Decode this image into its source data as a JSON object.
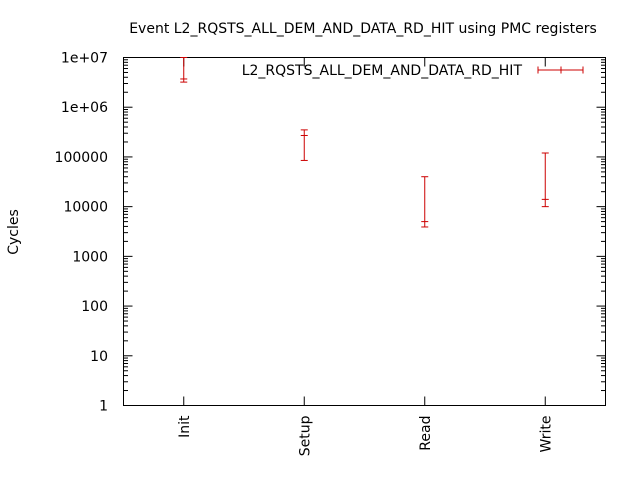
{
  "chart_data": {
    "type": "errorbar",
    "title": "Event L2_RQSTS_ALL_DEM_AND_DATA_RD_HIT using PMC registers",
    "xlabel": "",
    "ylabel": "Cycles",
    "yscale": "log",
    "ylim": [
      1,
      10000000
    ],
    "y_ticks": [
      {
        "value": 1,
        "label": "1"
      },
      {
        "value": 10,
        "label": "10"
      },
      {
        "value": 100,
        "label": "100"
      },
      {
        "value": 1000,
        "label": "1000"
      },
      {
        "value": 10000,
        "label": "10000"
      },
      {
        "value": 100000,
        "label": "100000"
      },
      {
        "value": 1000000,
        "label": "1e+06"
      },
      {
        "value": 10000000,
        "label": "1e+07"
      }
    ],
    "categories": [
      "Init",
      "Setup",
      "Read",
      "Write"
    ],
    "legend": {
      "position": "top-right",
      "entries": [
        "L2_RQSTS_ALL_DEM_AND_DATA_RD_HIT"
      ]
    },
    "series": [
      {
        "name": "L2_RQSTS_ALL_DEM_AND_DATA_RD_HIT",
        "color": "#cc0000",
        "points": [
          {
            "category": "Init",
            "min": 3200000,
            "mid": 3700000,
            "max": 10000000
          },
          {
            "category": "Setup",
            "min": 85000,
            "mid": 270000,
            "max": 350000
          },
          {
            "category": "Read",
            "min": 3900,
            "mid": 5000,
            "max": 40000
          },
          {
            "category": "Write",
            "min": 10000,
            "mid": 14000,
            "max": 120000
          }
        ]
      }
    ],
    "grid": false
  }
}
